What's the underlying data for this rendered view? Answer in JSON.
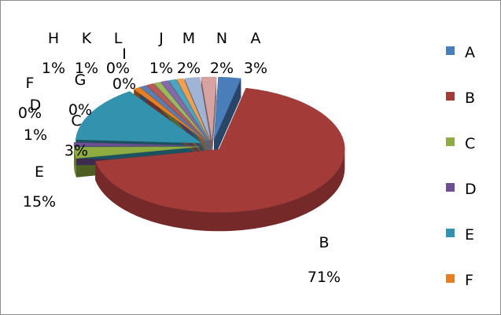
{
  "chart_data": {
    "type": "pie",
    "style": "3d-exploded",
    "categories": [
      "A",
      "B",
      "C",
      "D",
      "E",
      "F",
      "G",
      "H",
      "I",
      "J",
      "K",
      "L",
      "M",
      "N"
    ],
    "values": [
      3,
      71,
      3,
      1,
      15,
      0,
      0,
      1,
      0,
      1,
      1,
      0,
      2,
      2
    ],
    "value_labels": [
      "3%",
      "71%",
      "3%",
      "1%",
      "15%",
      "0%",
      "0%",
      "1%",
      "0%",
      "1%",
      "1%",
      "0%",
      "2%",
      "2%"
    ],
    "colors": [
      "#4a7ebb",
      "#a33b39",
      "#8eac42",
      "#6e4f91",
      "#3393ae",
      "#e67e22",
      "#5b7fb5",
      "#b85a58",
      "#9cb85f",
      "#8569a8",
      "#4aa5c0",
      "#f0a050",
      "#a0b4d6",
      "#d6a3a2"
    ],
    "legend_position": "right",
    "legend_entries": [
      "A",
      "B",
      "C",
      "D",
      "E",
      "F"
    ]
  }
}
